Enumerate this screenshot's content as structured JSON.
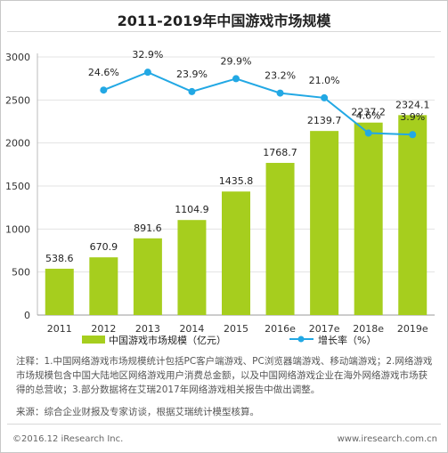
{
  "chart_data": {
    "type": "bar+line",
    "title": "2011-2019年中国游戏市场规模",
    "categories": [
      "2011",
      "2012",
      "2013",
      "2014",
      "2015",
      "2016e",
      "2017e",
      "2018e",
      "2019e"
    ],
    "series": [
      {
        "name": "中国游戏市场规模（亿元）",
        "type": "bar",
        "color": "#a6ce1e",
        "values": [
          538.6,
          670.9,
          891.6,
          1104.9,
          1435.8,
          1768.7,
          2139.7,
          2237.2,
          2324.1
        ],
        "labels": [
          "538.6",
          "670.9",
          "891.6",
          "1104.9",
          "1435.8",
          "1768.7",
          "2139.7",
          "2237.2",
          "2324.1"
        ]
      },
      {
        "name": "增长率（%）",
        "type": "line",
        "color": "#22a8e4",
        "values": [
          null,
          24.6,
          32.9,
          23.9,
          29.9,
          23.2,
          21.0,
          4.6,
          3.9
        ],
        "labels": [
          "",
          "24.6%",
          "32.9%",
          "23.9%",
          "29.9%",
          "23.2%",
          "21.0%",
          "4.6%",
          "3.9%"
        ],
        "axis": "secondary-hidden",
        "ylim": [
          -80,
          40
        ]
      }
    ],
    "ylim": [
      0,
      3000
    ],
    "yticks": [
      "0",
      "500",
      "1000",
      "1500",
      "2000",
      "2500",
      "3000"
    ],
    "grid": true,
    "legend": "bottom"
  },
  "notes": {
    "note": "注释：1.中国网络游戏市场规模统计包括PC客户端游戏、PC浏览器端游戏、移动端游戏；2.网络游戏市场规模包含中国大陆地区网络游戏用户消费总金额，以及中国网络游戏企业在海外网络游戏市场获得的总营收；3.部分数据将在艾瑞2017年网络游戏相关报告中做出调整。",
    "source": "来源：综合企业财报及专家访谈，根据艾瑞统计模型核算。"
  },
  "footer": {
    "copyright": "©2016.12 iResearch Inc.",
    "website": "www.iresearch.com.cn"
  }
}
